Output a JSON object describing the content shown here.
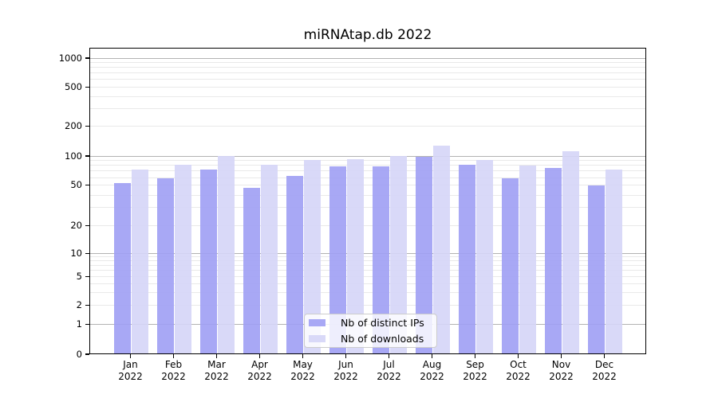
{
  "title": "miRNAtap.db 2022",
  "chart_data": {
    "type": "bar",
    "title": "miRNAtap.db 2022",
    "months": [
      "Jan",
      "Feb",
      "Mar",
      "Apr",
      "May",
      "Jun",
      "Jul",
      "Aug",
      "Sep",
      "Oct",
      "Nov",
      "Dec"
    ],
    "year": "2022",
    "series": [
      {
        "name": "Nb of distinct IPs",
        "color": "#a8a8f5",
        "bar_fill": "rgba(158,158,244,0.9)",
        "values": [
          52,
          58,
          72,
          47,
          62,
          77,
          78,
          97,
          80,
          58,
          75,
          49
        ]
      },
      {
        "name": "Nb of downloads",
        "color": "#d9d9f8",
        "bar_fill": "rgba(213,213,247,0.9)",
        "values": [
          72,
          80,
          100,
          80,
          90,
          92,
          100,
          125,
          90,
          79,
          110,
          72
        ]
      }
    ],
    "yscale": "symlog",
    "yticks": [
      0,
      1,
      2,
      5,
      10,
      20,
      50,
      100,
      200,
      500,
      1000
    ],
    "ylim": [
      0,
      1300
    ],
    "grid_major": [
      1,
      10,
      100,
      1000
    ],
    "grid_minor": [
      2,
      3,
      4,
      5,
      6,
      7,
      8,
      9,
      20,
      30,
      40,
      50,
      60,
      70,
      80,
      90,
      200,
      300,
      400,
      500,
      600,
      700,
      800,
      900
    ],
    "legend_position": "lower center",
    "legend_labels": [
      "Nb of distinct IPs",
      "Nb of downloads"
    ]
  },
  "colors": {
    "grid_major": "#b3b3b3",
    "grid_minor": "#e9e9e9",
    "axis": "#000000",
    "legend_border": "#cccccc"
  }
}
